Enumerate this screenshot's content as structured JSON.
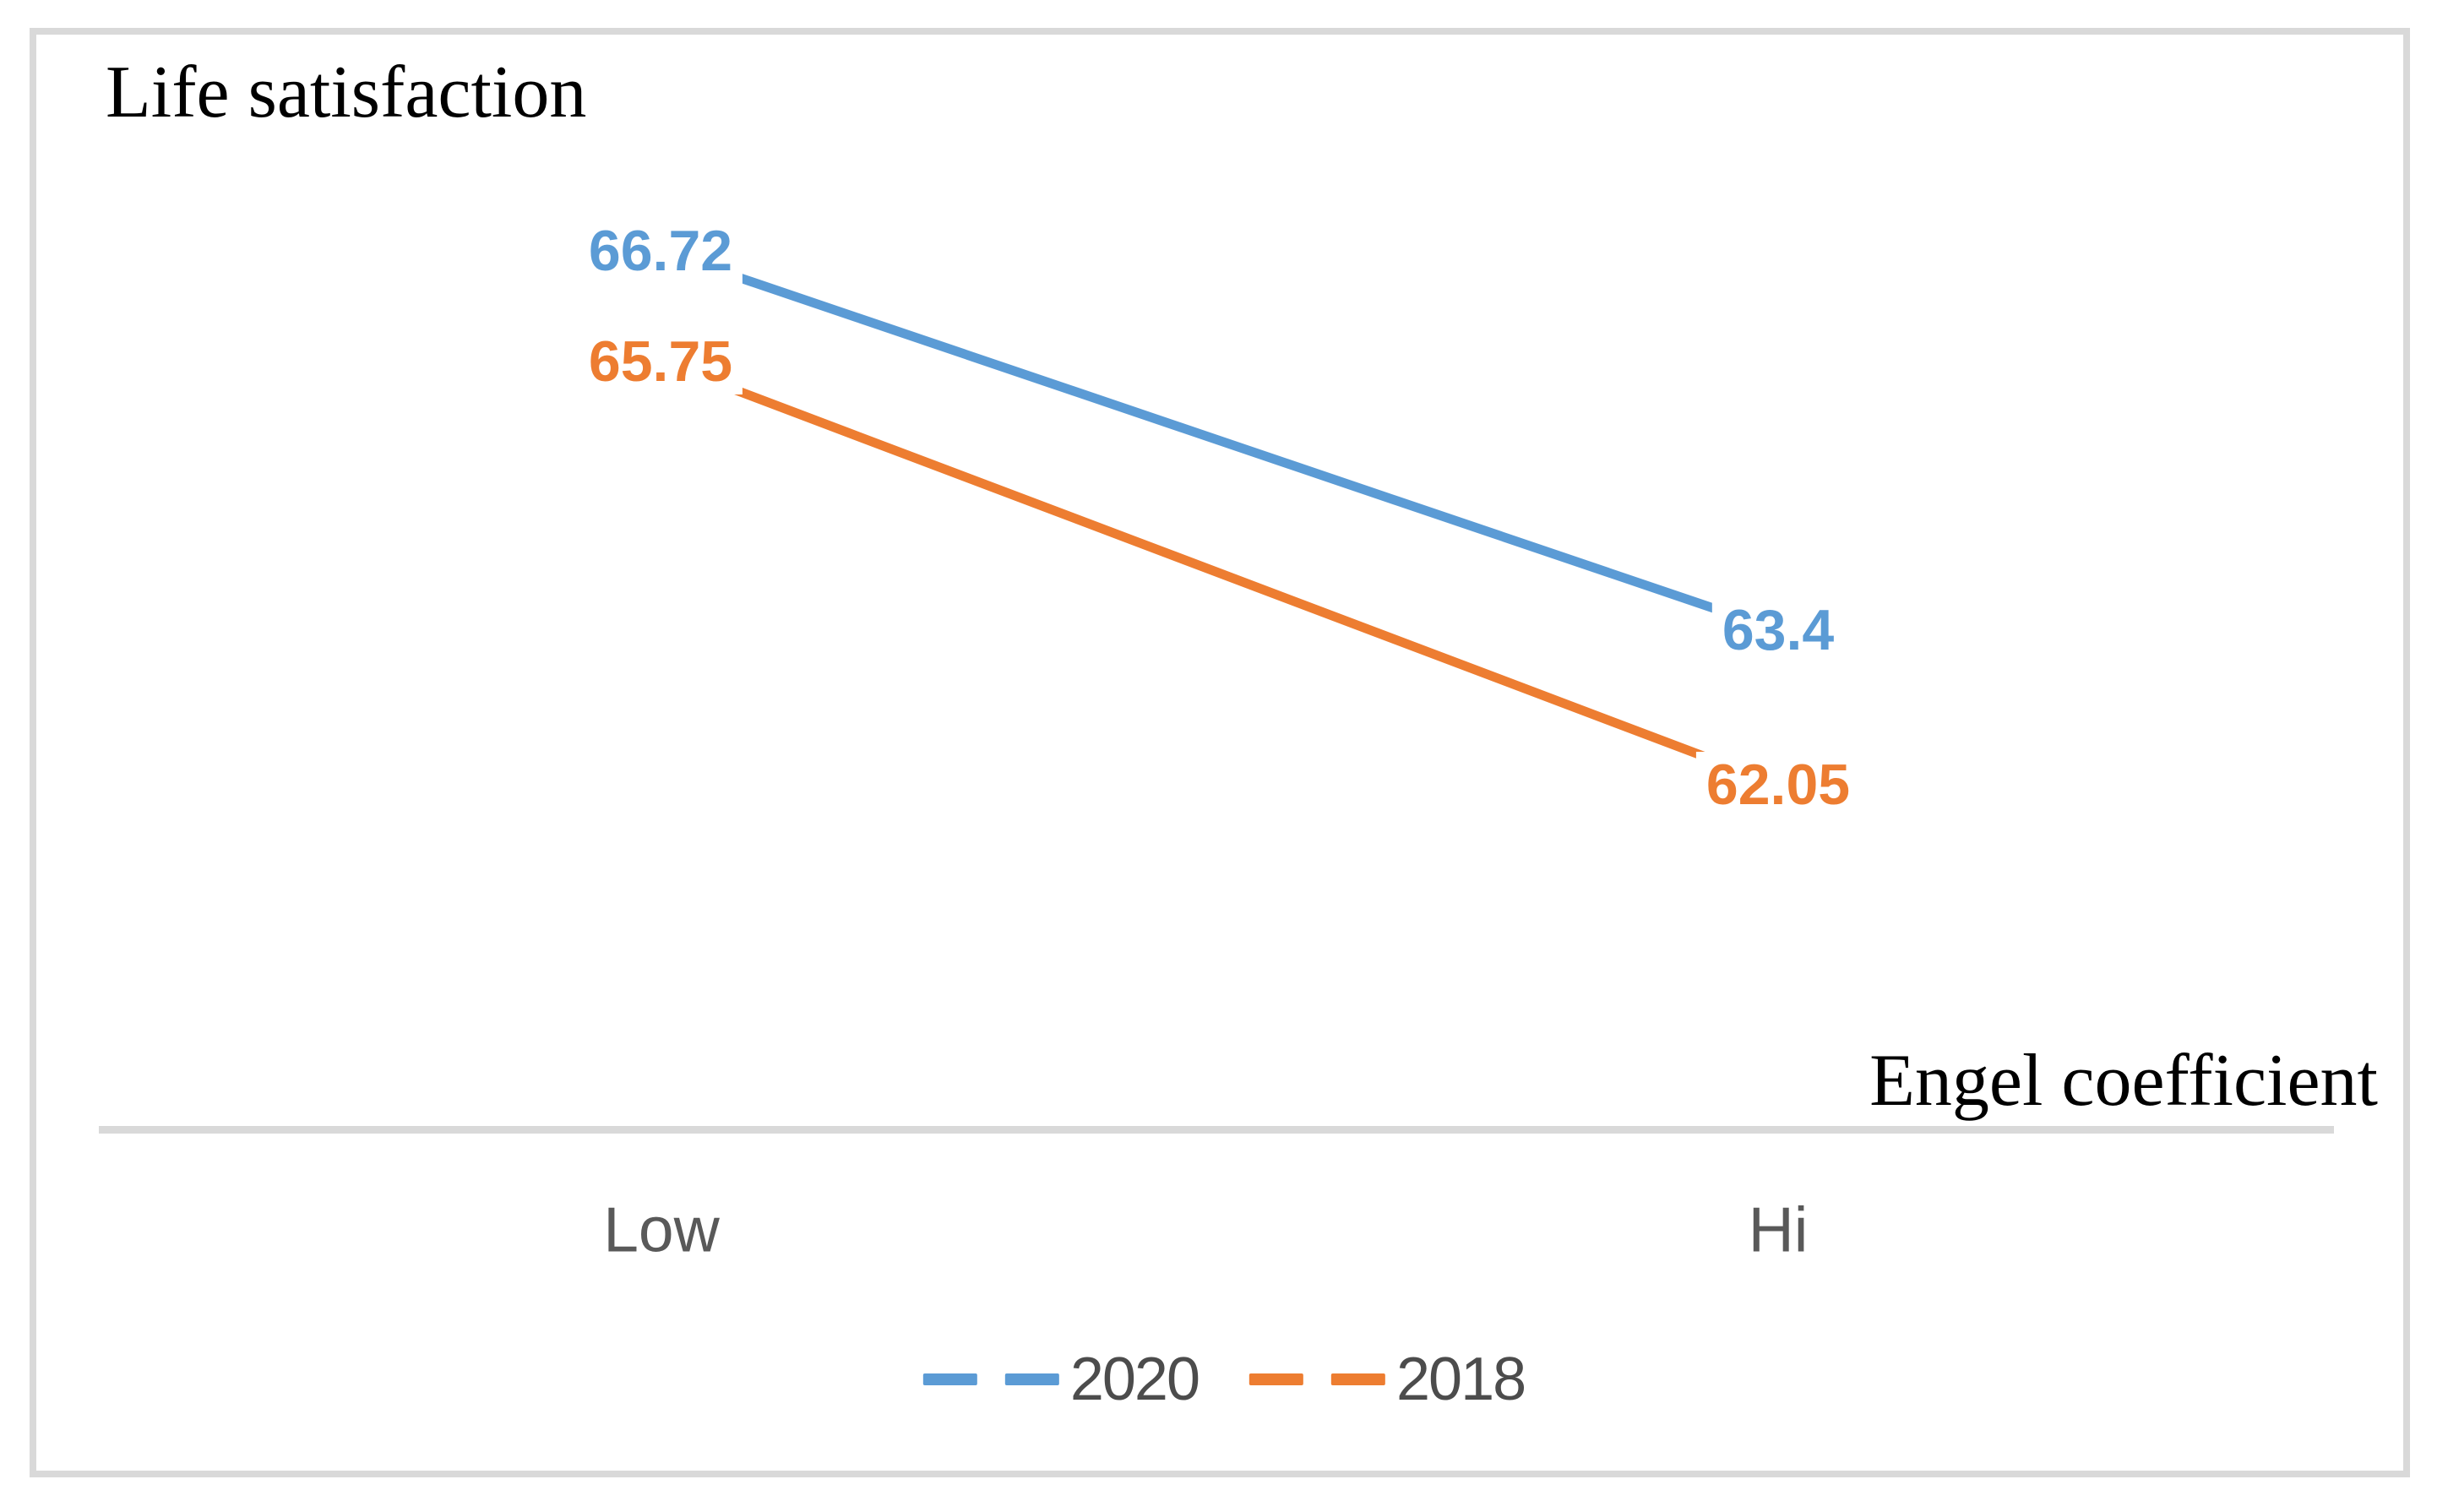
{
  "chart_data": {
    "type": "line",
    "title": "Life satisfaction",
    "xlabel": "Engel coefficient",
    "ylabel": "",
    "categories": [
      "Low",
      "Hi"
    ],
    "series": [
      {
        "name": "2020",
        "values": [
          66.72,
          63.4
        ],
        "color": "#5B9BD5"
      },
      {
        "name": "2018",
        "values": [
          65.75,
          62.05
        ],
        "color": "#ED7D31"
      }
    ],
    "ylim": [
      59.0,
      68.7
    ],
    "grid": false,
    "legend_position": "bottom",
    "data_labels": "center",
    "axis_line_color": "#D9D9D9",
    "frame_border_color": "#D9D9D9",
    "axis_text_color": "#595959",
    "legend_text_color": "#4C4C4C",
    "title_text_color": "#000000"
  }
}
